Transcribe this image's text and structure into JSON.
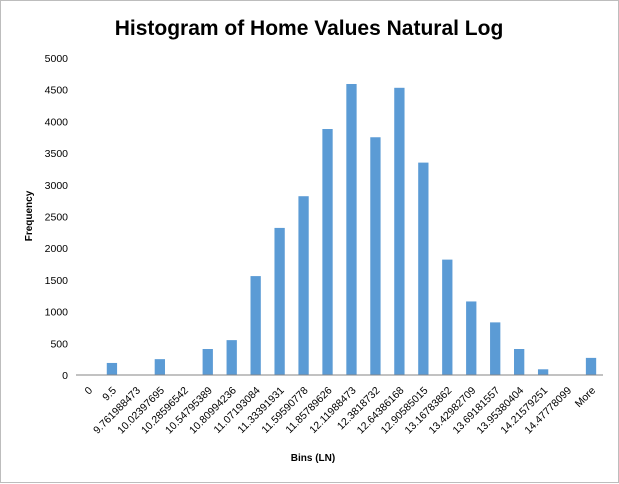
{
  "chart_data": {
    "type": "bar",
    "title": "Histogram of Home Values Natural Log",
    "xlabel": "Bins (LN)",
    "ylabel": "Frequency",
    "ylim": [
      0,
      5000
    ],
    "yticks": [
      "0",
      "500",
      "1000",
      "1500",
      "2000",
      "2500",
      "3000",
      "3500",
      "4000",
      "4500",
      "5000"
    ],
    "grid": false,
    "legend": "none",
    "bar_color": "#5b9bd5",
    "categories": [
      "0",
      "9.5",
      "9.761988473",
      "10.02397695",
      "10.28596542",
      "10.54795389",
      "10.80994236",
      "11.07193084",
      "11.33391931",
      "11.59590778",
      "11.85789626",
      "12.11988473",
      "12.3818732",
      "12.64386168",
      "12.90585015",
      "13.16783862",
      "13.42982709",
      "13.69181557",
      "13.95380404",
      "14.21579251",
      "14.47778099",
      "More"
    ],
    "values": [
      0,
      190,
      0,
      250,
      0,
      410,
      550,
      1560,
      2320,
      2820,
      3880,
      4590,
      3750,
      4530,
      3350,
      1820,
      1160,
      830,
      410,
      90,
      0,
      270
    ]
  }
}
